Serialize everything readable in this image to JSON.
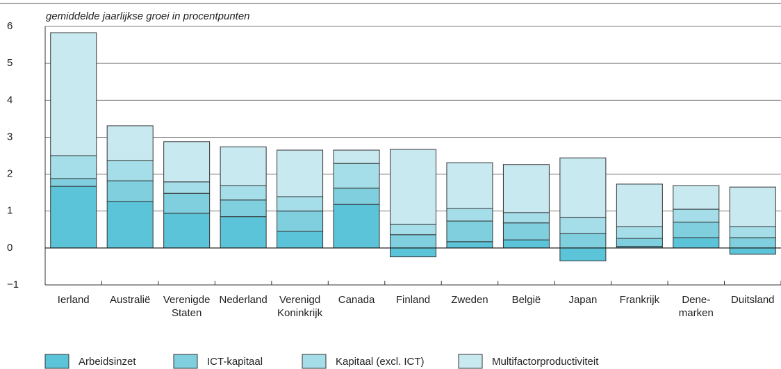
{
  "chart_data": {
    "type": "stacked_bar",
    "subtitle": "gemiddelde jaarlijkse groei in procentpunten",
    "categories": [
      "Ierland",
      "Australië",
      "Verenigde\nStaten",
      "Nederland",
      "Verenigd\nKoninkrijk",
      "Canada",
      "Finland",
      "Zweden",
      "België",
      "Japan",
      "Frankrijk",
      "Dene-\nmarken",
      "Duitsland"
    ],
    "series": [
      {
        "name": "Arbeidsinzet",
        "color": "#5bc4d8",
        "values": [
          1.67,
          1.26,
          0.94,
          0.85,
          0.45,
          1.18,
          -0.24,
          0.17,
          0.22,
          -0.35,
          0.04,
          0.28,
          -0.17
        ]
      },
      {
        "name": "ICT-kapitaal",
        "color": "#7fcfdf",
        "values": [
          0.21,
          0.56,
          0.54,
          0.45,
          0.55,
          0.44,
          0.36,
          0.56,
          0.46,
          0.39,
          0.22,
          0.42,
          0.28
        ]
      },
      {
        "name": "Kapitaal (excl. ICT)",
        "color": "#a5dde9",
        "values": [
          0.62,
          0.55,
          0.31,
          0.39,
          0.39,
          0.67,
          0.28,
          0.34,
          0.28,
          0.44,
          0.32,
          0.35,
          0.3
        ]
      },
      {
        "name": "Multifactorproductiviteit",
        "color": "#c9e9f1",
        "values": [
          3.33,
          0.94,
          1.09,
          1.05,
          1.26,
          0.36,
          2.03,
          1.24,
          1.3,
          1.61,
          1.15,
          0.64,
          1.07
        ]
      }
    ],
    "ylim": [
      -1,
      6
    ],
    "yticks": [
      {
        "value": -1,
        "label": "−1"
      },
      0,
      1,
      2,
      3,
      4,
      5,
      6
    ],
    "grid": true
  }
}
